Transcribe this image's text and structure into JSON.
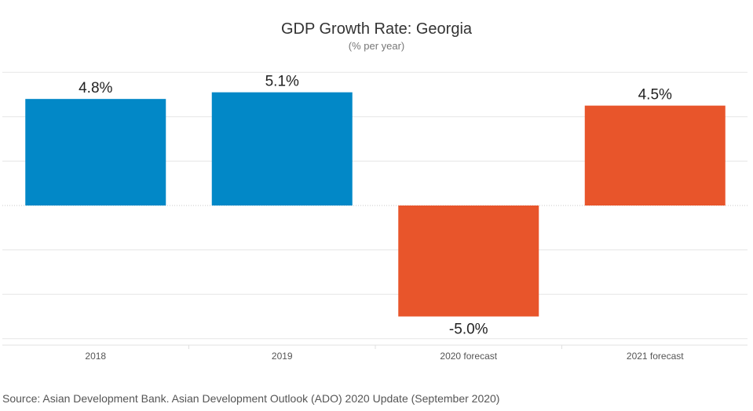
{
  "chart_data": {
    "type": "bar",
    "title": "GDP Growth Rate: Georgia",
    "subtitle": "(% per year)",
    "categories": [
      "2018",
      "2019",
      "2020 forecast",
      "2021 forecast"
    ],
    "values": [
      4.8,
      5.1,
      -5.0,
      4.5
    ],
    "data_labels": [
      "4.8%",
      "5.1%",
      "-5.0%",
      "4.5%"
    ],
    "bar_colors": [
      "#0288c7",
      "#0288c7",
      "#e8552b",
      "#e8552b"
    ],
    "ylim": [
      -6,
      6
    ],
    "grid": true,
    "legend": "none",
    "xlabel": "",
    "ylabel": ""
  },
  "source": "Source: Asian Development Bank. Asian Development Outlook (ADO) 2020 Update (September 2020)",
  "colors": {
    "actual": "#0288c7",
    "forecast": "#e8552b",
    "grid": "#e6e6e6",
    "zero_line": "#c8c8c8"
  }
}
